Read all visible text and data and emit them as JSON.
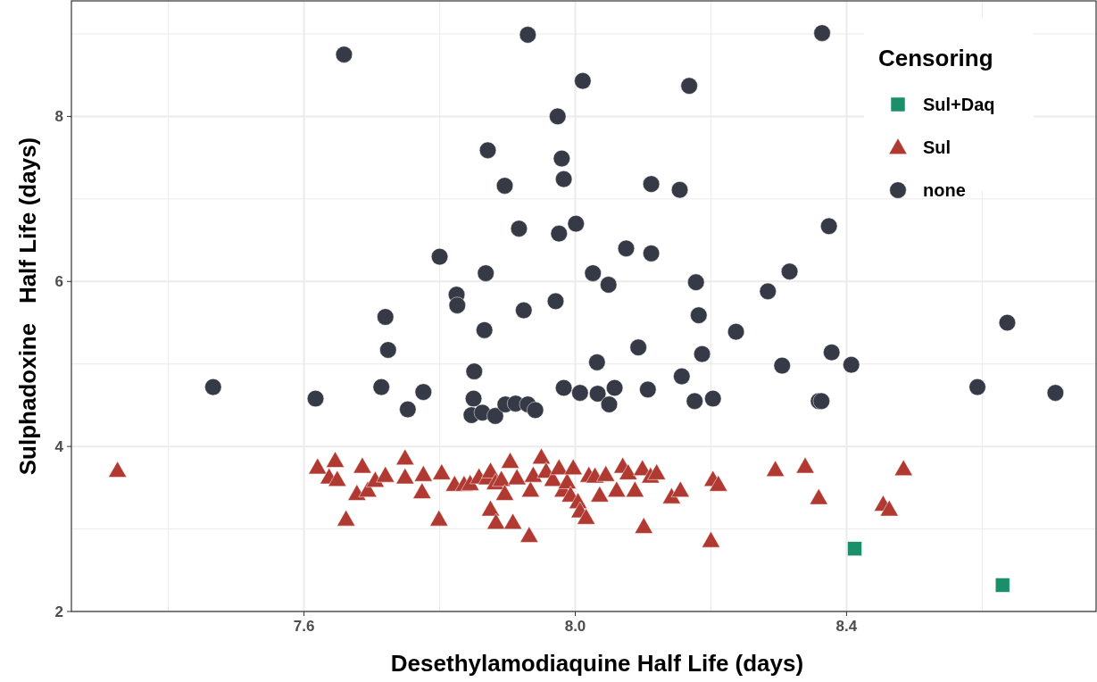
{
  "chart_data": {
    "type": "scatter",
    "xlabel": "Desethylamodiaquine Half Life (days)",
    "ylabel": "Sulphadoxine   Half Life (days)",
    "legend_title": "Censoring",
    "legend": "top right",
    "grid": true,
    "xlim": [
      7.257,
      8.768
    ],
    "ylim": [
      2,
      9.4
    ],
    "xticks": [
      {
        "value": 7.4,
        "label": null
      },
      {
        "value": 7.6,
        "label": "7.6"
      },
      {
        "value": 7.8,
        "label": null
      },
      {
        "value": 8.0,
        "label": "8.0"
      },
      {
        "value": 8.2,
        "label": null
      },
      {
        "value": 8.4,
        "label": "8.4"
      },
      {
        "value": 8.6,
        "label": null
      }
    ],
    "yticks": [
      {
        "value": 3,
        "label": null
      },
      2,
      {
        "value": 5,
        "label": null
      },
      4,
      {
        "value": 7,
        "label": null
      },
      6,
      {
        "value": 9,
        "label": null
      },
      8
    ],
    "series": [
      {
        "name": "Sul+Daq",
        "color": "#1b8e6a",
        "marker": "square",
        "x": [
          8.412,
          8.63
        ],
        "values": [
          2.76,
          2.32
        ]
      },
      {
        "name": "Sul",
        "color": "#b03a32",
        "marker": "triangle",
        "x": [
          7.325,
          7.62,
          7.646,
          7.637,
          7.649,
          7.686,
          7.662,
          7.678,
          7.694,
          7.705,
          7.72,
          7.749,
          7.749,
          7.776,
          7.774,
          7.799,
          7.803,
          7.822,
          7.836,
          7.845,
          7.858,
          7.87,
          7.875,
          7.882,
          7.875,
          7.883,
          7.891,
          7.896,
          7.904,
          7.908,
          7.914,
          7.934,
          7.932,
          7.938,
          7.95,
          7.957,
          7.967,
          7.976,
          7.982,
          7.988,
          7.997,
          7.993,
          8.004,
          8.007,
          8.016,
          8.02,
          8.029,
          8.036,
          8.045,
          8.061,
          8.07,
          8.078,
          8.088,
          8.099,
          8.101,
          8.111,
          8.12,
          8.142,
          8.155,
          8.2,
          8.203,
          8.211,
          8.295,
          8.339,
          8.359,
          8.454,
          8.463,
          8.484
        ],
        "values": [
          3.71,
          3.75,
          3.83,
          3.63,
          3.6,
          3.76,
          3.12,
          3.43,
          3.47,
          3.59,
          3.65,
          3.86,
          3.63,
          3.66,
          3.45,
          3.12,
          3.68,
          3.54,
          3.54,
          3.55,
          3.63,
          3.62,
          3.7,
          3.56,
          3.24,
          3.08,
          3.6,
          3.43,
          3.82,
          3.08,
          3.62,
          3.47,
          2.92,
          3.65,
          3.87,
          3.7,
          3.6,
          3.74,
          3.47,
          3.57,
          3.74,
          3.41,
          3.33,
          3.22,
          3.14,
          3.65,
          3.64,
          3.41,
          3.66,
          3.47,
          3.76,
          3.68,
          3.47,
          3.73,
          3.03,
          3.64,
          3.68,
          3.39,
          3.47,
          2.86,
          3.6,
          3.54,
          3.72,
          3.76,
          3.38,
          3.3,
          3.24,
          3.73
        ]
      },
      {
        "name": "none",
        "color": "#363a46",
        "marker": "circle",
        "x": [
          7.466,
          7.617,
          7.659,
          7.72,
          7.724,
          7.714,
          7.753,
          7.776,
          7.8,
          7.825,
          7.826,
          7.85,
          7.847,
          7.863,
          7.882,
          7.866,
          7.868,
          7.871,
          7.851,
          7.896,
          7.917,
          7.924,
          7.897,
          7.912,
          7.93,
          7.941,
          7.93,
          7.974,
          7.98,
          7.983,
          7.976,
          7.971,
          7.983,
          8.001,
          8.007,
          8.011,
          8.026,
          8.032,
          8.033,
          8.05,
          8.049,
          8.058,
          8.075,
          8.093,
          8.107,
          8.112,
          8.112,
          8.154,
          8.157,
          8.168,
          8.176,
          8.178,
          8.182,
          8.187,
          8.203,
          8.237,
          8.284,
          8.305,
          8.316,
          8.359,
          8.363,
          8.364,
          8.374,
          8.378,
          8.407,
          8.593,
          8.637,
          8.708
        ],
        "values": [
          4.72,
          4.58,
          8.75,
          5.57,
          5.17,
          4.72,
          4.45,
          4.66,
          6.3,
          5.84,
          5.71,
          4.58,
          4.38,
          4.41,
          4.37,
          5.41,
          6.1,
          7.59,
          4.91,
          7.16,
          6.64,
          5.65,
          4.51,
          4.52,
          4.51,
          4.44,
          8.99,
          8.0,
          7.49,
          7.24,
          6.58,
          5.76,
          4.71,
          6.7,
          4.65,
          8.43,
          6.1,
          5.02,
          4.64,
          4.51,
          5.96,
          4.71,
          6.4,
          5.2,
          4.69,
          7.18,
          6.34,
          7.11,
          4.85,
          8.37,
          4.55,
          5.99,
          5.59,
          5.12,
          4.58,
          5.39,
          5.88,
          4.98,
          6.12,
          4.55,
          4.55,
          9.01,
          6.67,
          5.14,
          4.99,
          4.72,
          5.5,
          4.65
        ]
      }
    ]
  }
}
